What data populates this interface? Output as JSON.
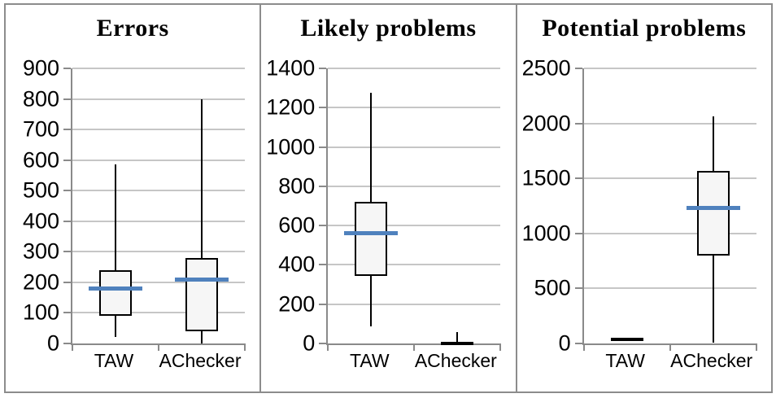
{
  "figure": {
    "background": "#FFFFFF",
    "border_color": "#8C8C8C"
  },
  "chart_data": [
    {
      "type": "boxplot",
      "title": "Errors",
      "categories": [
        "TAW",
        "AChecker"
      ],
      "y_axis": {
        "min": 0,
        "max": 900,
        "step": 100,
        "ticks": [
          "900",
          "800",
          "700",
          "600",
          "500",
          "400",
          "300",
          "200",
          "100",
          "0"
        ]
      },
      "grid": true,
      "legend": "none",
      "series": [
        {
          "name": "TAW",
          "min": 20,
          "q1": 90,
          "median": 180,
          "q3": 240,
          "max": 585
        },
        {
          "name": "AChecker",
          "min": 0,
          "q1": 40,
          "median": 210,
          "q3": 280,
          "max": 800
        }
      ],
      "colors": {
        "median_line": "#4F81BD",
        "box_fill": "#F6F6F6",
        "box_border": "#000000"
      }
    },
    {
      "type": "boxplot",
      "title": "Likely problems",
      "categories": [
        "TAW",
        "AChecker"
      ],
      "y_axis": {
        "min": 0,
        "max": 1400,
        "step": 200,
        "ticks": [
          "1400",
          "1200",
          "1000",
          "800",
          "600",
          "400",
          "200",
          "0"
        ]
      },
      "grid": true,
      "legend": "none",
      "series": [
        {
          "name": "TAW",
          "min": 85,
          "q1": 345,
          "median": 560,
          "q3": 720,
          "max": 1275
        },
        {
          "name": "AChecker",
          "min": 0,
          "q1": 0,
          "median": null,
          "q3": 10,
          "max": 60
        }
      ],
      "colors": {
        "median_line": "#4F81BD",
        "box_fill": "#F6F6F6",
        "box_border": "#000000"
      }
    },
    {
      "type": "boxplot",
      "title": "Potential problems",
      "categories": [
        "TAW",
        "AChecker"
      ],
      "y_axis": {
        "min": 0,
        "max": 2500,
        "step": 500,
        "ticks": [
          "2500",
          "2000",
          "1500",
          "1000",
          "500",
          "0"
        ]
      },
      "grid": true,
      "legend": "none",
      "series": [
        {
          "name": "TAW",
          "min": 30,
          "q1": 30,
          "median": null,
          "q3": 55,
          "max": 55
        },
        {
          "name": "AChecker",
          "min": 5,
          "q1": 800,
          "median": 1230,
          "q3": 1570,
          "max": 2060
        }
      ],
      "colors": {
        "median_line": "#4F81BD",
        "box_fill": "#F6F6F6",
        "box_border": "#000000"
      }
    }
  ]
}
